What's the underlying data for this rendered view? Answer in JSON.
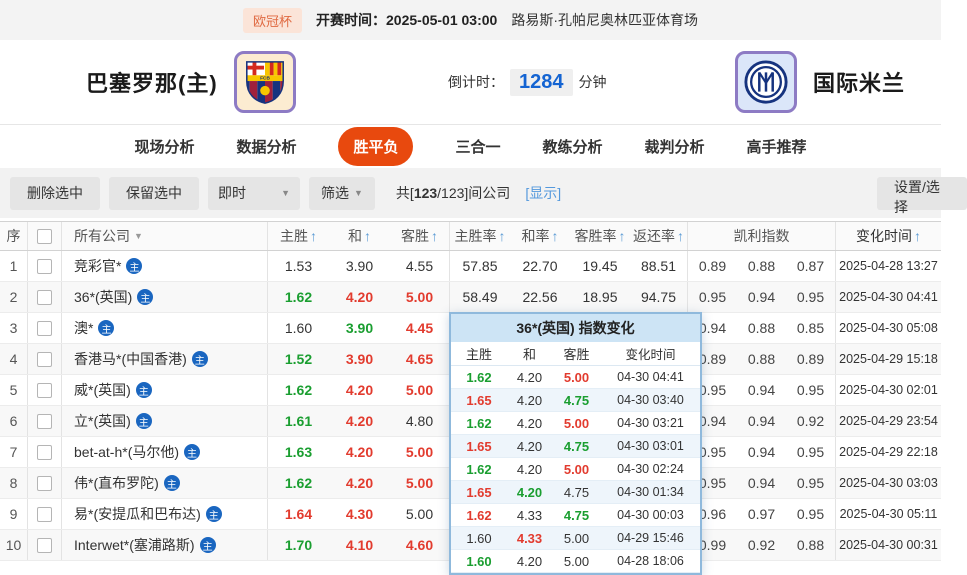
{
  "icons": {
    "sort_asc": "↑",
    "caret_down": "▼",
    "home_badge": "主"
  },
  "top_bar": {
    "league": "欧冠杯",
    "kickoff_label": "开赛时间：",
    "kickoff_time": "2025-05-01 03:00",
    "venue": "路易斯·孔帕尼奥林匹亚体育场"
  },
  "match": {
    "home_name": "巴塞罗那(主)",
    "away_name": "国际米兰",
    "countdown_label": "倒计时：",
    "countdown_value": "1284",
    "countdown_unit": "分钟"
  },
  "tabs": [
    {
      "label": "现场分析",
      "active": false
    },
    {
      "label": "数据分析",
      "active": false
    },
    {
      "label": "胜平负",
      "active": true
    },
    {
      "label": "三合一",
      "active": false
    },
    {
      "label": "教练分析",
      "active": false
    },
    {
      "label": "裁判分析",
      "active": false
    },
    {
      "label": "高手推荐",
      "active": false
    }
  ],
  "toolbar": {
    "delete_btn": "删除选中",
    "keep_btn": "保留选中",
    "instant_dropdown": "即时",
    "filter_dropdown": "筛选",
    "count_prefix": "共[",
    "count_shown": "123",
    "count_rest": "/123]间公司",
    "show_link": "[显示]",
    "settings_btn": "设置/选择"
  },
  "table": {
    "headers": {
      "seq": "序",
      "company": "所有公司",
      "home": "主胜",
      "draw": "和",
      "away": "客胜",
      "home_rate": "主胜率",
      "draw_rate": "和率",
      "away_rate": "客胜率",
      "return_rate": "返还率",
      "kelly": "凯利指数",
      "change_time": "变化时间"
    },
    "rows": [
      {
        "seq": "1",
        "company": "竞彩官*",
        "home": "1.53",
        "home_c": "k",
        "draw": "3.90",
        "draw_c": "k",
        "away": "4.55",
        "away_c": "k",
        "home_rate": "57.85",
        "draw_rate": "22.70",
        "away_rate": "19.45",
        "return_rate": "88.51",
        "kelly": [
          "0.89",
          "0.88",
          "0.87"
        ],
        "time": "2025-04-28 13:27"
      },
      {
        "seq": "2",
        "company": "36*(英国)",
        "home": "1.62",
        "home_c": "g",
        "draw": "4.20",
        "draw_c": "r",
        "away": "5.00",
        "away_c": "r",
        "home_rate": "58.49",
        "draw_rate": "22.56",
        "away_rate": "18.95",
        "return_rate": "94.75",
        "kelly": [
          "0.95",
          "0.94",
          "0.95"
        ],
        "time": "2025-04-30 04:41"
      },
      {
        "seq": "3",
        "company": "澳*",
        "home": "1.60",
        "home_c": "k",
        "draw": "3.90",
        "draw_c": "g",
        "away": "4.45",
        "away_c": "r",
        "home_rate": "",
        "draw_rate": "",
        "away_rate": "",
        "return_rate": "",
        "kelly": [
          "0.94",
          "0.88",
          "0.85"
        ],
        "time": "2025-04-30 05:08"
      },
      {
        "seq": "4",
        "company": "香港马*(中国香港)",
        "home": "1.52",
        "home_c": "g",
        "draw": "3.90",
        "draw_c": "r",
        "away": "4.65",
        "away_c": "r",
        "home_rate": "",
        "draw_rate": "",
        "away_rate": "",
        "return_rate": "",
        "kelly": [
          "0.89",
          "0.88",
          "0.89"
        ],
        "time": "2025-04-29 15:18"
      },
      {
        "seq": "5",
        "company": "威*(英国)",
        "home": "1.62",
        "home_c": "g",
        "draw": "4.20",
        "draw_c": "r",
        "away": "5.00",
        "away_c": "r",
        "home_rate": "",
        "draw_rate": "",
        "away_rate": "",
        "return_rate": "",
        "kelly": [
          "0.95",
          "0.94",
          "0.95"
        ],
        "time": "2025-04-30 02:01"
      },
      {
        "seq": "6",
        "company": "立*(英国)",
        "home": "1.61",
        "home_c": "g",
        "draw": "4.20",
        "draw_c": "r",
        "away": "4.80",
        "away_c": "k",
        "home_rate": "",
        "draw_rate": "",
        "away_rate": "",
        "return_rate": "",
        "kelly": [
          "0.94",
          "0.94",
          "0.92"
        ],
        "time": "2025-04-29 23:54"
      },
      {
        "seq": "7",
        "company": "bet-at-h*(马尔他)",
        "home": "1.63",
        "home_c": "g",
        "draw": "4.20",
        "draw_c": "r",
        "away": "5.00",
        "away_c": "r",
        "home_rate": "",
        "draw_rate": "",
        "away_rate": "",
        "return_rate": "",
        "kelly": [
          "0.95",
          "0.94",
          "0.95"
        ],
        "time": "2025-04-29 22:18"
      },
      {
        "seq": "8",
        "company": "伟*(直布罗陀)",
        "home": "1.62",
        "home_c": "g",
        "draw": "4.20",
        "draw_c": "r",
        "away": "5.00",
        "away_c": "r",
        "home_rate": "",
        "draw_rate": "",
        "away_rate": "",
        "return_rate": "",
        "kelly": [
          "0.95",
          "0.94",
          "0.95"
        ],
        "time": "2025-04-30 03:03"
      },
      {
        "seq": "9",
        "company": "易*(安提瓜和巴布达)",
        "home": "1.64",
        "home_c": "r",
        "draw": "4.30",
        "draw_c": "r",
        "away": "5.00",
        "away_c": "k",
        "home_rate": "",
        "draw_rate": "",
        "away_rate": "",
        "return_rate": "",
        "kelly": [
          "0.96",
          "0.97",
          "0.95"
        ],
        "time": "2025-04-30 05:11"
      },
      {
        "seq": "10",
        "company": "Interwet*(塞浦路斯)",
        "home": "1.70",
        "home_c": "g",
        "draw": "4.10",
        "draw_c": "r",
        "away": "4.60",
        "away_c": "r",
        "home_rate": "",
        "draw_rate": "",
        "away_rate": "",
        "return_rate": "",
        "kelly": [
          "0.99",
          "0.92",
          "0.88"
        ],
        "time": "2025-04-30 00:31"
      }
    ]
  },
  "popup": {
    "title": "36*(英国) 指数变化",
    "headers": {
      "home": "主胜",
      "draw": "和",
      "away": "客胜",
      "time": "变化时间"
    },
    "rows": [
      {
        "home": "1.62",
        "home_c": "g",
        "draw": "4.20",
        "draw_c": "k",
        "away": "5.00",
        "away_c": "r",
        "time": "04-30 04:41"
      },
      {
        "home": "1.65",
        "home_c": "r",
        "draw": "4.20",
        "draw_c": "k",
        "away": "4.75",
        "away_c": "g",
        "time": "04-30 03:40"
      },
      {
        "home": "1.62",
        "home_c": "g",
        "draw": "4.20",
        "draw_c": "k",
        "away": "5.00",
        "away_c": "r",
        "time": "04-30 03:21"
      },
      {
        "home": "1.65",
        "home_c": "r",
        "draw": "4.20",
        "draw_c": "k",
        "away": "4.75",
        "away_c": "g",
        "time": "04-30 03:01"
      },
      {
        "home": "1.62",
        "home_c": "g",
        "draw": "4.20",
        "draw_c": "k",
        "away": "5.00",
        "away_c": "r",
        "time": "04-30 02:24"
      },
      {
        "home": "1.65",
        "home_c": "r",
        "draw": "4.20",
        "draw_c": "g",
        "away": "4.75",
        "away_c": "k",
        "time": "04-30 01:34"
      },
      {
        "home": "1.62",
        "home_c": "r",
        "draw": "4.33",
        "draw_c": "k",
        "away": "4.75",
        "away_c": "g",
        "time": "04-30 00:03"
      },
      {
        "home": "1.60",
        "home_c": "k",
        "draw": "4.33",
        "draw_c": "r",
        "away": "5.00",
        "away_c": "k",
        "time": "04-29 15:46"
      },
      {
        "home": "1.60",
        "home_c": "g",
        "draw": "4.20",
        "draw_c": "k",
        "away": "5.00",
        "away_c": "k",
        "time": "04-28 18:06"
      }
    ]
  },
  "colors": {
    "accent": "#e8490e",
    "green": "#1a9e30",
    "red": "#e23b2e",
    "countdown_blue": "#1464d2",
    "link_blue": "#5599dd"
  }
}
